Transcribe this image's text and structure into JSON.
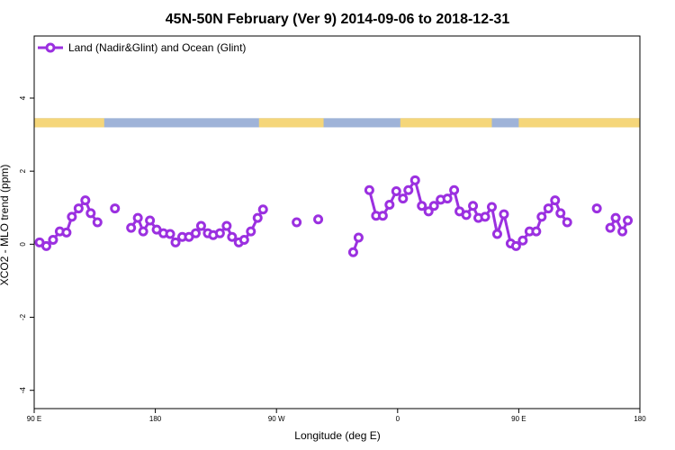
{
  "chart_data": {
    "type": "line",
    "title": "45N-50N February (Ver 9)   2014-09-06 to 2018-12-31",
    "xlabel": "Longitude (deg E)",
    "ylabel": "XCO2 - MLO trend (ppm)",
    "xlim": [
      90,
      540
    ],
    "ylim": [
      -4.5,
      5.7
    ],
    "x_ticks": [
      {
        "value": 90,
        "label": "90 E"
      },
      {
        "value": 180,
        "label": "180"
      },
      {
        "value": 270,
        "label": "90 W"
      },
      {
        "value": 360,
        "label": "0"
      },
      {
        "value": 450,
        "label": "90 E"
      },
      {
        "value": 540,
        "label": "180"
      }
    ],
    "y_ticks": [
      {
        "value": -4,
        "label": "-4"
      },
      {
        "value": -2,
        "label": "-2"
      },
      {
        "value": 0,
        "label": "0"
      },
      {
        "value": 2,
        "label": "2"
      },
      {
        "value": 4,
        "label": "4"
      }
    ],
    "legend": {
      "position": "top-left"
    },
    "land_ocean_band": {
      "y_range": [
        3.2,
        3.45
      ],
      "land_color": "#f5d67a",
      "ocean_color": "#9fb3d8",
      "land_spans": [
        [
          90,
          142
        ],
        [
          257,
          305
        ],
        [
          362,
          430
        ],
        [
          450,
          562
        ],
        [
          556,
          560
        ]
      ]
    },
    "series": [
      {
        "name": "Land (Nadir&Glint) and Ocean (Glint)",
        "color": "#9b30e0",
        "segments": [
          [
            [
              94,
              0.05
            ],
            [
              99,
              -0.05
            ],
            [
              104,
              0.12
            ],
            [
              109,
              0.35
            ],
            [
              114,
              0.32
            ],
            [
              118,
              0.75
            ],
            [
              123,
              0.98
            ],
            [
              128,
              1.2
            ],
            [
              132,
              0.85
            ],
            [
              137,
              0.6
            ]
          ],
          [
            [
              150,
              0.98
            ]
          ],
          [
            [
              162,
              0.45
            ],
            [
              167,
              0.72
            ],
            [
              171,
              0.35
            ],
            [
              176,
              0.65
            ],
            [
              181,
              0.4
            ],
            [
              186,
              0.3
            ],
            [
              191,
              0.28
            ],
            [
              195,
              0.05
            ],
            [
              200,
              0.2
            ],
            [
              205,
              0.2
            ],
            [
              210,
              0.3
            ],
            [
              214,
              0.5
            ],
            [
              219,
              0.3
            ],
            [
              223,
              0.25
            ],
            [
              228,
              0.3
            ],
            [
              233,
              0.5
            ],
            [
              237,
              0.2
            ],
            [
              242,
              0.05
            ],
            [
              246,
              0.12
            ],
            [
              251,
              0.35
            ],
            [
              256,
              0.72
            ],
            [
              260,
              0.95
            ]
          ],
          [
            [
              285,
              0.6
            ]
          ],
          [
            [
              301,
              0.68
            ]
          ],
          [
            [
              327,
              -0.22
            ],
            [
              331,
              0.18
            ]
          ],
          [
            [
              339,
              1.48
            ],
            [
              344,
              0.78
            ],
            [
              349,
              0.78
            ],
            [
              354,
              1.08
            ],
            [
              359,
              1.45
            ],
            [
              364,
              1.25
            ],
            [
              368,
              1.48
            ],
            [
              373,
              1.75
            ],
            [
              378,
              1.05
            ],
            [
              383,
              0.9
            ],
            [
              387,
              1.05
            ],
            [
              392,
              1.22
            ],
            [
              397,
              1.25
            ],
            [
              402,
              1.48
            ],
            [
              406,
              0.9
            ],
            [
              411,
              0.8
            ],
            [
              416,
              1.05
            ],
            [
              420,
              0.72
            ],
            [
              425,
              0.75
            ],
            [
              430,
              1.02
            ],
            [
              434,
              0.28
            ],
            [
              439,
              0.82
            ],
            [
              444,
              0.02
            ],
            [
              448,
              -0.05
            ],
            [
              453,
              0.1
            ],
            [
              458,
              0.35
            ],
            [
              463,
              0.35
            ],
            [
              467,
              0.75
            ],
            [
              472,
              0.98
            ],
            [
              477,
              1.2
            ],
            [
              481,
              0.85
            ],
            [
              486,
              0.6
            ]
          ],
          [
            [
              508,
              0.98
            ]
          ],
          [
            [
              518,
              0.45
            ],
            [
              522,
              0.72
            ],
            [
              527,
              0.35
            ],
            [
              531,
              0.65
            ]
          ]
        ]
      }
    ]
  }
}
